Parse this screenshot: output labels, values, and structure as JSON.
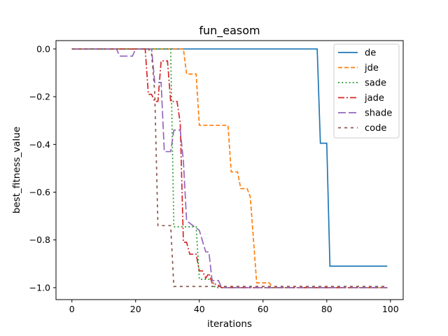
{
  "chart_data": {
    "type": "line",
    "title": "fun_easom",
    "xlabel": "iterations",
    "ylabel": "best_fitness_value",
    "xlim": [
      -5,
      104
    ],
    "ylim": [
      -1.05,
      0.035
    ],
    "xticks": [
      0,
      20,
      40,
      60,
      80,
      100
    ],
    "yticks": [
      0.0,
      -0.2,
      -0.4,
      -0.6,
      -0.8,
      -1.0
    ],
    "xtick_labels": [
      "0",
      "20",
      "40",
      "60",
      "80",
      "100"
    ],
    "ytick_labels": [
      "0.0",
      "−0.2",
      "−0.4",
      "−0.6",
      "−0.8",
      "−1.0"
    ],
    "grid": false,
    "legend_position": "top-right",
    "series": [
      {
        "name": "de",
        "color": "#1f77b4",
        "dash": "solid",
        "points": [
          [
            0,
            0.0
          ],
          [
            77,
            0.0
          ],
          [
            78,
            -0.395
          ],
          [
            80,
            -0.395
          ],
          [
            81,
            -0.91
          ],
          [
            99,
            -0.91
          ]
        ]
      },
      {
        "name": "jde",
        "color": "#ff7f0e",
        "dash": "dashed",
        "points": [
          [
            0,
            0.0
          ],
          [
            35,
            0.0
          ],
          [
            36,
            -0.105
          ],
          [
            39,
            -0.105
          ],
          [
            40,
            -0.32
          ],
          [
            49,
            -0.32
          ],
          [
            50,
            -0.515
          ],
          [
            52,
            -0.515
          ],
          [
            53,
            -0.585
          ],
          [
            55,
            -0.585
          ],
          [
            56,
            -0.62
          ],
          [
            58,
            -0.98
          ],
          [
            62,
            -0.98
          ],
          [
            63,
            -1.0
          ],
          [
            99,
            -1.0
          ]
        ]
      },
      {
        "name": "sade",
        "color": "#2ca02c",
        "dash": "dotted",
        "points": [
          [
            0,
            0.0
          ],
          [
            31,
            0.0
          ],
          [
            32,
            -0.745
          ],
          [
            39,
            -0.745
          ],
          [
            40,
            -0.965
          ],
          [
            44,
            -0.965
          ],
          [
            45,
            -1.0
          ],
          [
            99,
            -1.0
          ]
        ]
      },
      {
        "name": "jade",
        "color": "#d62728",
        "dash": "dashdot",
        "points": [
          [
            0,
            0.0
          ],
          [
            23,
            0.0
          ],
          [
            24,
            -0.19
          ],
          [
            25,
            -0.19
          ],
          [
            26,
            -0.22
          ],
          [
            27,
            -0.22
          ],
          [
            28,
            -0.05
          ],
          [
            30,
            -0.05
          ],
          [
            31,
            -0.22
          ],
          [
            33,
            -0.22
          ],
          [
            34,
            -0.31
          ],
          [
            35,
            -0.81
          ],
          [
            36,
            -0.81
          ],
          [
            37,
            -0.86
          ],
          [
            38,
            -0.86
          ],
          [
            39,
            -0.86
          ],
          [
            40,
            -0.93
          ],
          [
            41,
            -0.93
          ],
          [
            42,
            -0.96
          ],
          [
            43,
            -0.94
          ],
          [
            44,
            -0.98
          ],
          [
            46,
            -0.99
          ],
          [
            47,
            -1.0
          ],
          [
            99,
            -1.0
          ]
        ]
      },
      {
        "name": "shade",
        "color": "#9467bd",
        "dash": "longdash",
        "points": [
          [
            0,
            0.0
          ],
          [
            14,
            0.0
          ],
          [
            15,
            -0.03
          ],
          [
            19,
            -0.03
          ],
          [
            20,
            0.0
          ],
          [
            25,
            0.0
          ],
          [
            26,
            -0.14
          ],
          [
            28,
            -0.14
          ],
          [
            29,
            -0.43
          ],
          [
            31,
            -0.43
          ],
          [
            32,
            -0.34
          ],
          [
            34,
            -0.34
          ],
          [
            35,
            -0.47
          ],
          [
            36,
            -0.72
          ],
          [
            40,
            -0.76
          ],
          [
            42,
            -0.85
          ],
          [
            43,
            -0.85
          ],
          [
            44,
            -0.97
          ],
          [
            46,
            -0.97
          ],
          [
            47,
            -1.0
          ],
          [
            99,
            -1.0
          ]
        ]
      },
      {
        "name": "code",
        "color": "#8c564b",
        "dash": "shortdash",
        "points": [
          [
            0,
            0.0
          ],
          [
            24,
            0.0
          ],
          [
            25,
            -0.02
          ],
          [
            26,
            -0.18
          ],
          [
            27,
            -0.74
          ],
          [
            31,
            -0.74
          ],
          [
            32,
            -0.995
          ],
          [
            99,
            -0.995
          ]
        ]
      }
    ]
  }
}
